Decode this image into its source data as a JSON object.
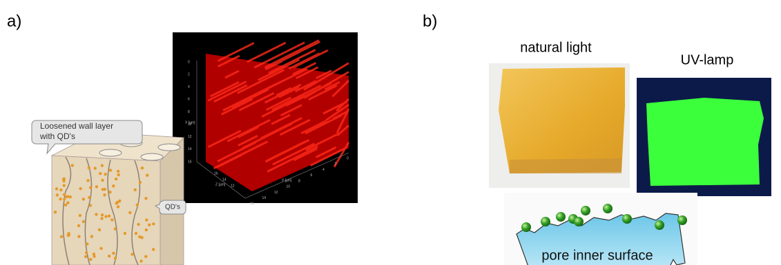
{
  "panel_a": {
    "label": "a)",
    "callout_wall": [
      "Loosened wall layer",
      "with QD's"
    ],
    "callout_qd": "QD's",
    "afm_plot": {
      "x_axis_label": "X [µm]",
      "y_axis_label": "Y [µm]",
      "z_axis_label": "Z [µm]",
      "x_ticks": [
        "0",
        "2",
        "4",
        "6",
        "8",
        "10",
        "12",
        "14",
        "16"
      ],
      "y_ticks": [
        "16",
        "14",
        "12",
        "10",
        "8",
        "6",
        "4",
        "2",
        "0"
      ],
      "z_ticks": [
        "16",
        "14",
        "12"
      ]
    }
  },
  "panel_b": {
    "label": "b)",
    "photo_left_caption": "natural light",
    "photo_right_caption": "UV-lamp",
    "diagram_caption": "pore inner surface"
  }
}
